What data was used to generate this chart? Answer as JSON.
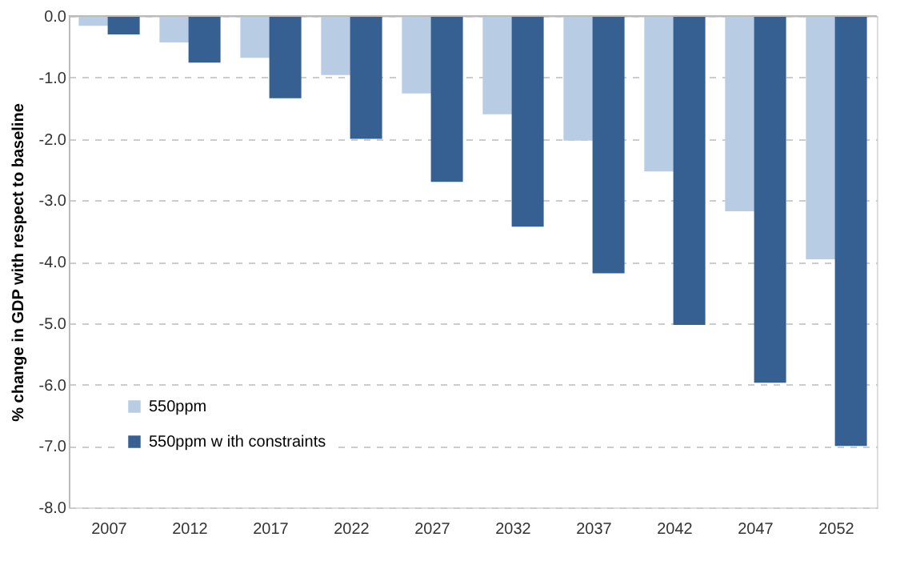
{
  "chart_data": {
    "type": "bar",
    "ylabel": "% change in GDP with respect to baseline",
    "categories": [
      "2007",
      "2012",
      "2017",
      "2022",
      "2027",
      "2032",
      "2037",
      "2042",
      "2047",
      "2052"
    ],
    "series": [
      {
        "name": "550ppm",
        "color": "#b8cce4",
        "values": [
          -0.16,
          -0.43,
          -0.68,
          -0.96,
          -1.26,
          -1.6,
          -2.03,
          -2.53,
          -3.18,
          -3.96
        ]
      },
      {
        "name": "550ppm w ith constraints",
        "color": "#366092",
        "values": [
          -0.3,
          -0.76,
          -1.34,
          -2.0,
          -2.7,
          -3.43,
          -4.19,
          -5.03,
          -5.97,
          -7.0
        ]
      }
    ],
    "ylim": [
      -8,
      0
    ],
    "yticks": [
      {
        "value": -8,
        "label": "-8.0"
      },
      {
        "value": -7,
        "label": "-7.0"
      },
      {
        "value": -6,
        "label": "-6.0"
      },
      {
        "value": -5,
        "label": "-5.0"
      },
      {
        "value": -4,
        "label": "-4.0"
      },
      {
        "value": -3,
        "label": "-3.0"
      },
      {
        "value": -2,
        "label": "-2.0"
      },
      {
        "value": -1,
        "label": "-1.0"
      },
      {
        "value": 0,
        "label": "0.0"
      }
    ],
    "grid": "y",
    "legend": "bottom left"
  }
}
